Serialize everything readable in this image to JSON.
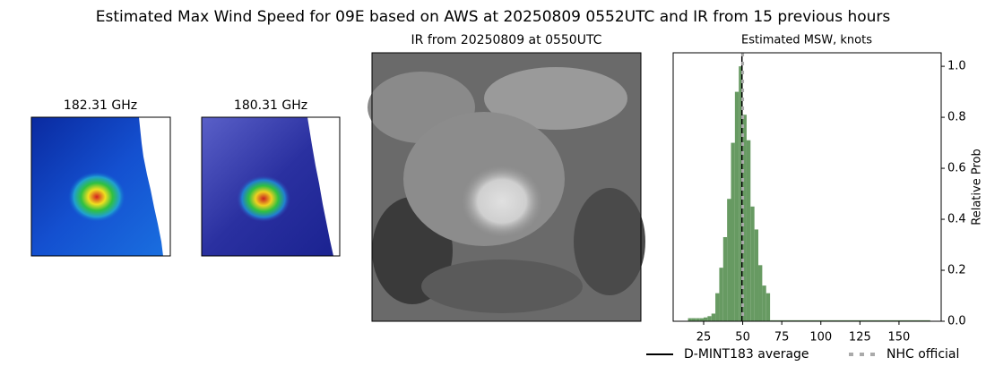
{
  "title": "Estimated Max Wind Speed for 09E based on AWS at 20250809 0552UTC and IR from 15 previous hours",
  "panels": [
    {
      "title": "182.31 GHz"
    },
    {
      "title": "180.31 GHz"
    },
    {
      "title": "IR from 20250809 at 0550UTC"
    }
  ],
  "chart_data": {
    "type": "histogram",
    "title": "Estimated MSW, knots",
    "ylabel": "Relative Prob",
    "bins": [
      15,
      17.5,
      20,
      22.5,
      25,
      27.5,
      30,
      32.5,
      35,
      37.5,
      40,
      42.5,
      45,
      47.5,
      50,
      52.5,
      55,
      57.5,
      60,
      62.5,
      65,
      67.5,
      170
    ],
    "values": [
      0.012,
      0.012,
      0.012,
      0.012,
      0.015,
      0.02,
      0.03,
      0.11,
      0.21,
      0.33,
      0.48,
      0.7,
      0.9,
      1.0,
      0.81,
      0.71,
      0.45,
      0.36,
      0.22,
      0.14,
      0.11,
      0.004
    ],
    "color": "#679a62",
    "xlim": [
      5.5,
      177
    ],
    "xticks": [
      25,
      50,
      75,
      100,
      125,
      150
    ],
    "ylim": [
      0,
      1.053
    ],
    "yticks": [
      {
        "value": 0,
        "label": "0.0"
      },
      0.2,
      0.4,
      0.6,
      0.8,
      {
        "value": 1,
        "label": "1.0"
      }
    ],
    "lines": [
      {
        "name": "D-MINT183 average",
        "value": 49.5,
        "color": "#000000",
        "style": "solid"
      },
      {
        "name": "NHC official",
        "value": 50,
        "color": "#aaaaaa",
        "style": "dashed"
      }
    ],
    "legend": "lower right"
  }
}
